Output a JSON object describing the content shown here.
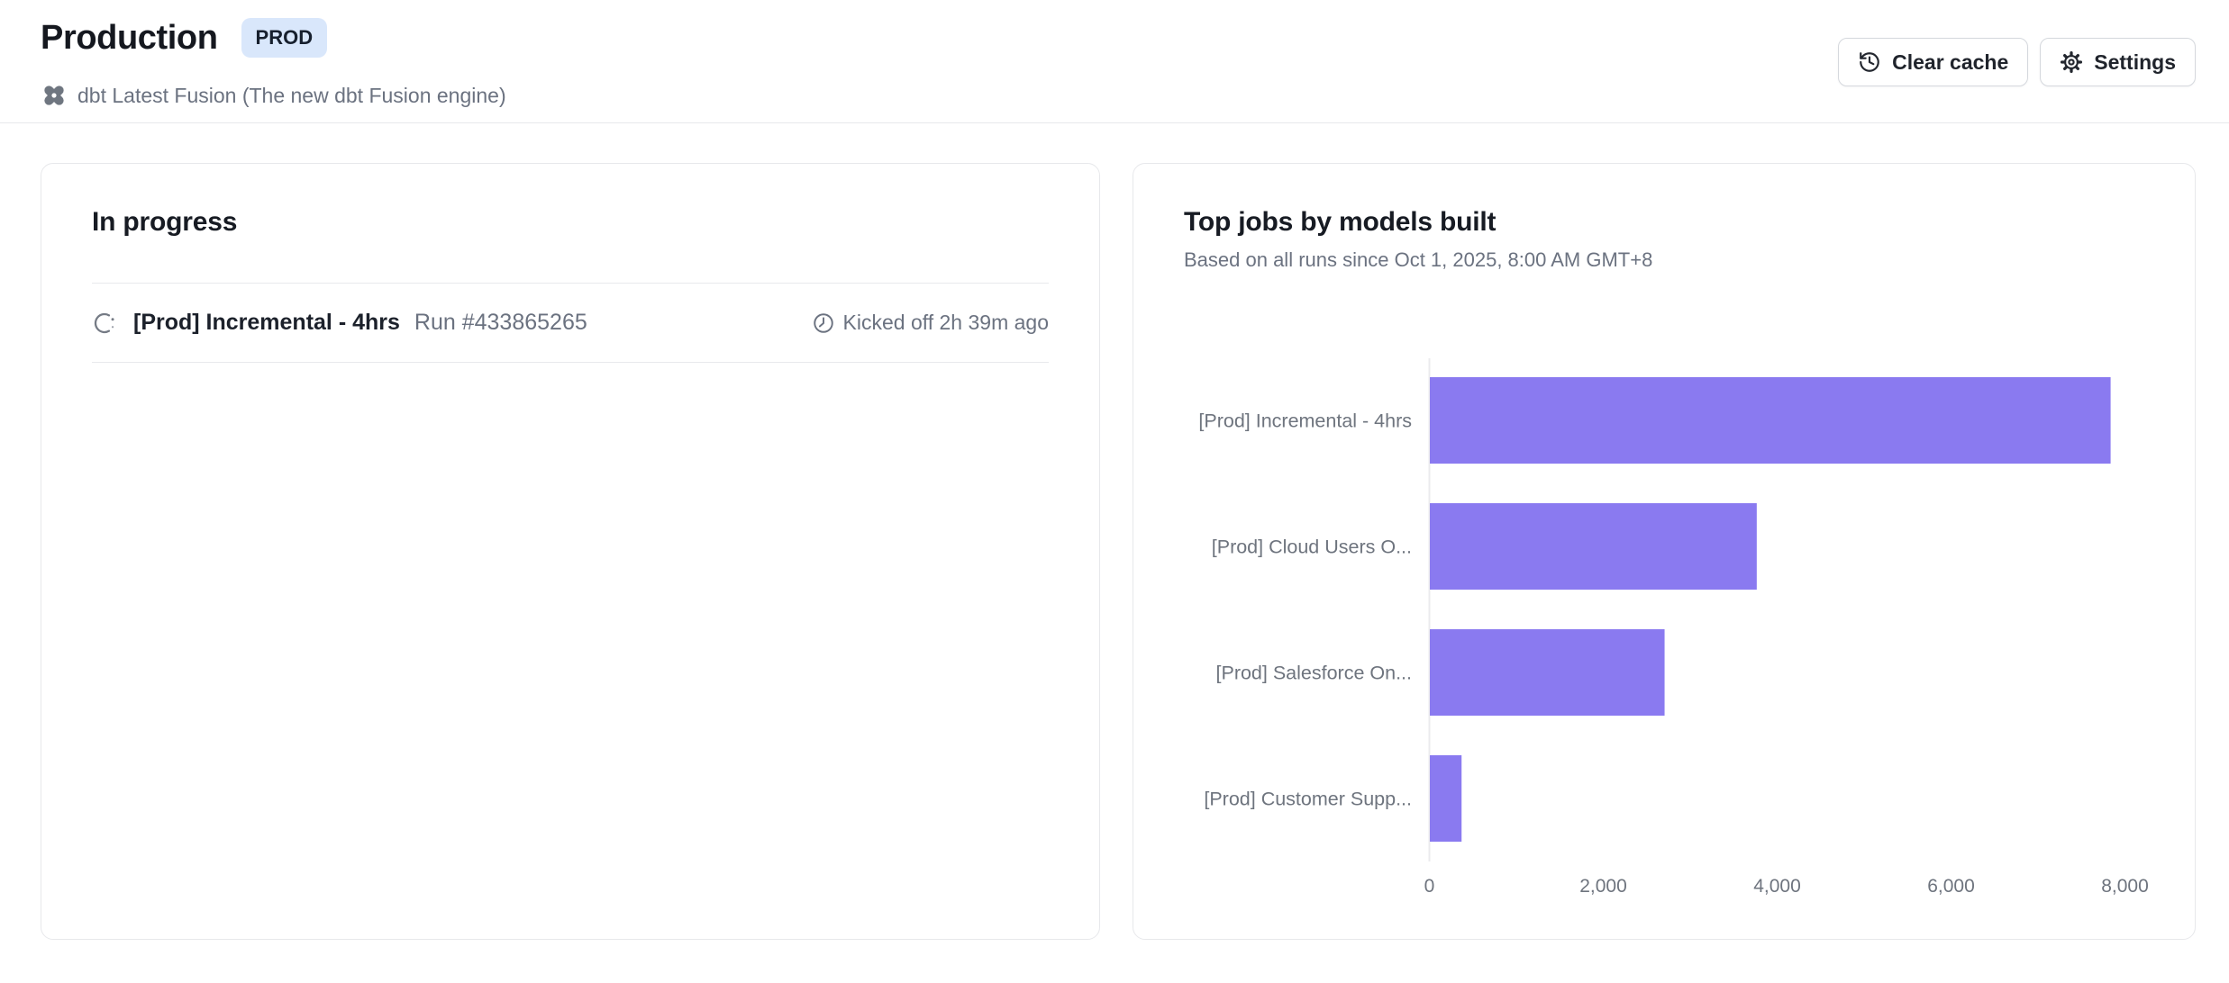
{
  "header": {
    "title": "Production",
    "env_badge": "PROD",
    "engine_label": "dbt Latest Fusion (The new dbt Fusion engine)",
    "actions": [
      {
        "label": "Clear cache",
        "icon": "history-icon"
      },
      {
        "label": "Settings",
        "icon": "gear-icon"
      }
    ]
  },
  "in_progress_card": {
    "title": "In progress",
    "runs": [
      {
        "status": "running",
        "job_name": "[Prod] Incremental - 4hrs",
        "run_label": "Run #433865265",
        "kicked_off": "Kicked off 2h 39m ago"
      }
    ]
  },
  "top_jobs_card": {
    "title": "Top jobs by models built",
    "subtitle": "Based on all runs since Oct 1, 2025, 8:00 AM GMT+8"
  },
  "chart_data": {
    "type": "bar",
    "orientation": "horizontal",
    "title": "Top jobs by models built",
    "categories": [
      "[Prod] Incremental - 4hrs",
      "[Prod] Cloud Users O...",
      "[Prod] Salesforce On...",
      "[Prod] Customer Supp..."
    ],
    "values": [
      7830,
      3760,
      2700,
      365
    ],
    "xlim": [
      0,
      8180
    ],
    "xticks": [
      0,
      2000,
      4000,
      6000,
      8000
    ],
    "xtick_labels": [
      "0",
      "2,000",
      "4,000",
      "6,000",
      "8,000"
    ],
    "grid": false,
    "legend": false,
    "bar_color": "#8a7af0",
    "axis_line_color": "#ebebee",
    "label_color": "#6e747e"
  }
}
